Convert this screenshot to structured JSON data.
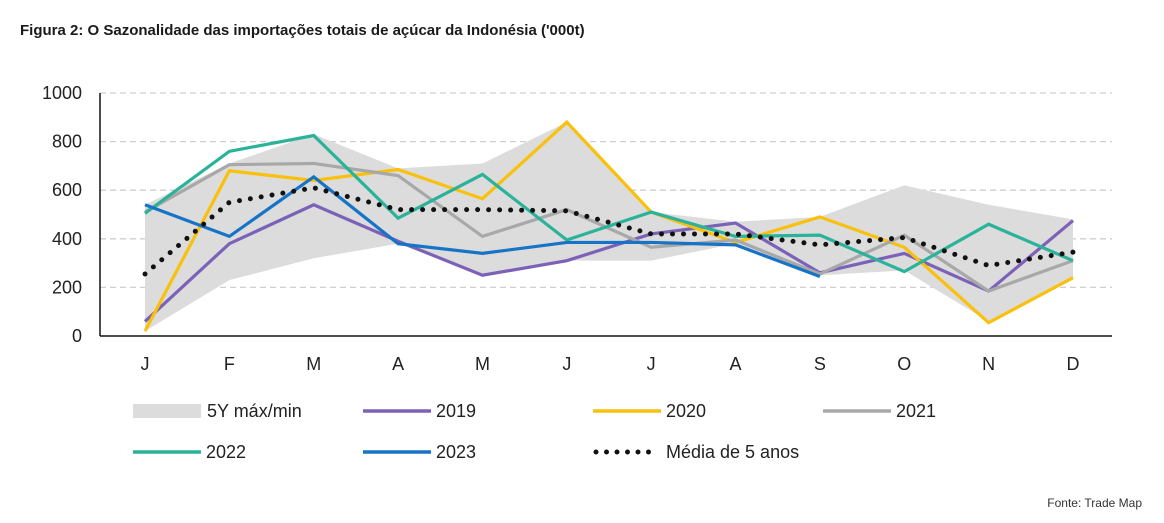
{
  "title": "Figura 2: O Sazonalidade das importações totais de açúcar da Indonésia ('000t)",
  "source": "Fonte: Trade Map",
  "chart_data": {
    "type": "line",
    "categories": [
      "J",
      "F",
      "M",
      "A",
      "M",
      "J",
      "J",
      "A",
      "S",
      "O",
      "N",
      "D"
    ],
    "ylim": [
      0,
      1000
    ],
    "yticks": [
      0,
      200,
      400,
      600,
      800,
      1000
    ],
    "grid": "horizontal dashed",
    "legend_position": "bottom",
    "band": {
      "name": "5Y máx/min",
      "color": "#dcdcdc",
      "max": [
        540,
        710,
        830,
        690,
        710,
        880,
        510,
        470,
        490,
        620,
        540,
        480
      ],
      "min": [
        20,
        230,
        320,
        380,
        250,
        310,
        310,
        380,
        250,
        270,
        60,
        240
      ]
    },
    "series": [
      {
        "name": "2019",
        "color": "#7b61b7",
        "style": "solid",
        "values": [
          60,
          380,
          540,
          390,
          250,
          310,
          420,
          465,
          260,
          340,
          185,
          475
        ]
      },
      {
        "name": "2020",
        "color": "#f9c00c",
        "style": "solid",
        "values": [
          20,
          680,
          640,
          685,
          565,
          880,
          510,
          385,
          490,
          365,
          55,
          240
        ]
      },
      {
        "name": "2021",
        "color": "#a8a8a8",
        "style": "solid",
        "values": [
          510,
          705,
          710,
          660,
          410,
          520,
          365,
          395,
          255,
          415,
          185,
          310
        ]
      },
      {
        "name": "2022",
        "color": "#2bb39a",
        "style": "solid",
        "values": [
          505,
          760,
          825,
          485,
          665,
          395,
          510,
          410,
          415,
          265,
          460,
          310
        ]
      },
      {
        "name": "2023",
        "color": "#1773c6",
        "style": "solid",
        "values": [
          540,
          410,
          655,
          380,
          340,
          385,
          385,
          375,
          245,
          null,
          null,
          null
        ]
      },
      {
        "name": "Média de 5 anos",
        "color": "#111111",
        "style": "dotted",
        "values": [
          255,
          550,
          610,
          520,
          520,
          515,
          420,
          420,
          375,
          405,
          290,
          345
        ]
      }
    ]
  }
}
